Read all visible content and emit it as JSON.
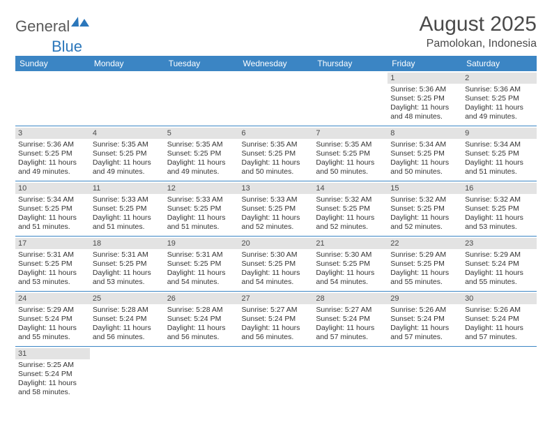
{
  "logo": {
    "text1": "General",
    "text2": "Blue"
  },
  "title": "August 2025",
  "location": "Pamolokan, Indonesia",
  "colors": {
    "header_bg": "#3b85c4",
    "header_text": "#ffffff",
    "daynum_bg": "#e3e3e3",
    "border": "#3b85c4",
    "logo_gray": "#5a5a5a",
    "logo_blue": "#2b77bb"
  },
  "fonts": {
    "title_size": 30,
    "location_size": 16,
    "dayhdr_size": 12,
    "cell_size": 10.5
  },
  "day_headers": [
    "Sunday",
    "Monday",
    "Tuesday",
    "Wednesday",
    "Thursday",
    "Friday",
    "Saturday"
  ],
  "weeks": [
    [
      null,
      null,
      null,
      null,
      null,
      {
        "n": "1",
        "sr": "Sunrise: 5:36 AM",
        "ss": "Sunset: 5:25 PM",
        "dl": "Daylight: 11 hours and 48 minutes."
      },
      {
        "n": "2",
        "sr": "Sunrise: 5:36 AM",
        "ss": "Sunset: 5:25 PM",
        "dl": "Daylight: 11 hours and 49 minutes."
      }
    ],
    [
      {
        "n": "3",
        "sr": "Sunrise: 5:36 AM",
        "ss": "Sunset: 5:25 PM",
        "dl": "Daylight: 11 hours and 49 minutes."
      },
      {
        "n": "4",
        "sr": "Sunrise: 5:35 AM",
        "ss": "Sunset: 5:25 PM",
        "dl": "Daylight: 11 hours and 49 minutes."
      },
      {
        "n": "5",
        "sr": "Sunrise: 5:35 AM",
        "ss": "Sunset: 5:25 PM",
        "dl": "Daylight: 11 hours and 49 minutes."
      },
      {
        "n": "6",
        "sr": "Sunrise: 5:35 AM",
        "ss": "Sunset: 5:25 PM",
        "dl": "Daylight: 11 hours and 50 minutes."
      },
      {
        "n": "7",
        "sr": "Sunrise: 5:35 AM",
        "ss": "Sunset: 5:25 PM",
        "dl": "Daylight: 11 hours and 50 minutes."
      },
      {
        "n": "8",
        "sr": "Sunrise: 5:34 AM",
        "ss": "Sunset: 5:25 PM",
        "dl": "Daylight: 11 hours and 50 minutes."
      },
      {
        "n": "9",
        "sr": "Sunrise: 5:34 AM",
        "ss": "Sunset: 5:25 PM",
        "dl": "Daylight: 11 hours and 51 minutes."
      }
    ],
    [
      {
        "n": "10",
        "sr": "Sunrise: 5:34 AM",
        "ss": "Sunset: 5:25 PM",
        "dl": "Daylight: 11 hours and 51 minutes."
      },
      {
        "n": "11",
        "sr": "Sunrise: 5:33 AM",
        "ss": "Sunset: 5:25 PM",
        "dl": "Daylight: 11 hours and 51 minutes."
      },
      {
        "n": "12",
        "sr": "Sunrise: 5:33 AM",
        "ss": "Sunset: 5:25 PM",
        "dl": "Daylight: 11 hours and 51 minutes."
      },
      {
        "n": "13",
        "sr": "Sunrise: 5:33 AM",
        "ss": "Sunset: 5:25 PM",
        "dl": "Daylight: 11 hours and 52 minutes."
      },
      {
        "n": "14",
        "sr": "Sunrise: 5:32 AM",
        "ss": "Sunset: 5:25 PM",
        "dl": "Daylight: 11 hours and 52 minutes."
      },
      {
        "n": "15",
        "sr": "Sunrise: 5:32 AM",
        "ss": "Sunset: 5:25 PM",
        "dl": "Daylight: 11 hours and 52 minutes."
      },
      {
        "n": "16",
        "sr": "Sunrise: 5:32 AM",
        "ss": "Sunset: 5:25 PM",
        "dl": "Daylight: 11 hours and 53 minutes."
      }
    ],
    [
      {
        "n": "17",
        "sr": "Sunrise: 5:31 AM",
        "ss": "Sunset: 5:25 PM",
        "dl": "Daylight: 11 hours and 53 minutes."
      },
      {
        "n": "18",
        "sr": "Sunrise: 5:31 AM",
        "ss": "Sunset: 5:25 PM",
        "dl": "Daylight: 11 hours and 53 minutes."
      },
      {
        "n": "19",
        "sr": "Sunrise: 5:31 AM",
        "ss": "Sunset: 5:25 PM",
        "dl": "Daylight: 11 hours and 54 minutes."
      },
      {
        "n": "20",
        "sr": "Sunrise: 5:30 AM",
        "ss": "Sunset: 5:25 PM",
        "dl": "Daylight: 11 hours and 54 minutes."
      },
      {
        "n": "21",
        "sr": "Sunrise: 5:30 AM",
        "ss": "Sunset: 5:25 PM",
        "dl": "Daylight: 11 hours and 54 minutes."
      },
      {
        "n": "22",
        "sr": "Sunrise: 5:29 AM",
        "ss": "Sunset: 5:25 PM",
        "dl": "Daylight: 11 hours and 55 minutes."
      },
      {
        "n": "23",
        "sr": "Sunrise: 5:29 AM",
        "ss": "Sunset: 5:24 PM",
        "dl": "Daylight: 11 hours and 55 minutes."
      }
    ],
    [
      {
        "n": "24",
        "sr": "Sunrise: 5:29 AM",
        "ss": "Sunset: 5:24 PM",
        "dl": "Daylight: 11 hours and 55 minutes."
      },
      {
        "n": "25",
        "sr": "Sunrise: 5:28 AM",
        "ss": "Sunset: 5:24 PM",
        "dl": "Daylight: 11 hours and 56 minutes."
      },
      {
        "n": "26",
        "sr": "Sunrise: 5:28 AM",
        "ss": "Sunset: 5:24 PM",
        "dl": "Daylight: 11 hours and 56 minutes."
      },
      {
        "n": "27",
        "sr": "Sunrise: 5:27 AM",
        "ss": "Sunset: 5:24 PM",
        "dl": "Daylight: 11 hours and 56 minutes."
      },
      {
        "n": "28",
        "sr": "Sunrise: 5:27 AM",
        "ss": "Sunset: 5:24 PM",
        "dl": "Daylight: 11 hours and 57 minutes."
      },
      {
        "n": "29",
        "sr": "Sunrise: 5:26 AM",
        "ss": "Sunset: 5:24 PM",
        "dl": "Daylight: 11 hours and 57 minutes."
      },
      {
        "n": "30",
        "sr": "Sunrise: 5:26 AM",
        "ss": "Sunset: 5:24 PM",
        "dl": "Daylight: 11 hours and 57 minutes."
      }
    ],
    [
      {
        "n": "31",
        "sr": "Sunrise: 5:25 AM",
        "ss": "Sunset: 5:24 PM",
        "dl": "Daylight: 11 hours and 58 minutes."
      },
      null,
      null,
      null,
      null,
      null,
      null
    ]
  ]
}
